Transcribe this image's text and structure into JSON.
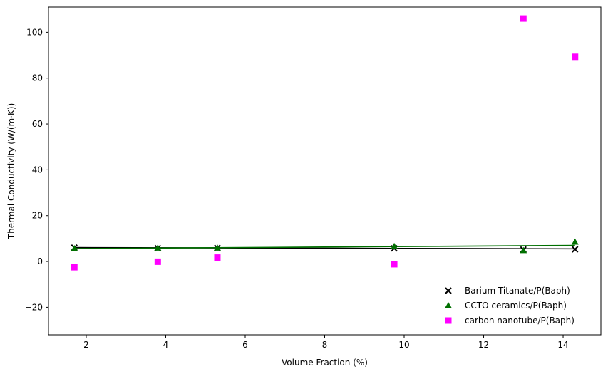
{
  "chart_data": {
    "type": "scatter",
    "title": "",
    "xlabel": "Volume Fraction (%)",
    "ylabel": "Thermal Conductivity (W/(m·K))",
    "xlim": [
      1.05,
      14.95
    ],
    "ylim": [
      -32,
      111
    ],
    "xticks": [
      2,
      4,
      6,
      8,
      10,
      12,
      14
    ],
    "yticks": [
      -20,
      0,
      20,
      40,
      60,
      80,
      100
    ],
    "grid": false,
    "legend_position": "lower-right",
    "series": [
      {
        "name": "Barium Titanate/P(Baph)",
        "marker": "x",
        "color": "#000000",
        "x": [
          1.7,
          3.8,
          5.3,
          9.75,
          13.0,
          14.3
        ],
        "y": [
          6.0,
          5.8,
          5.9,
          5.7,
          5.2,
          5.3
        ],
        "fit": {
          "x": [
            1.7,
            14.3
          ],
          "y": [
            6.05,
            5.5
          ]
        }
      },
      {
        "name": "CCTO ceramics/P(Baph)",
        "marker": "triangle",
        "color": "#007000",
        "x": [
          1.7,
          3.8,
          5.3,
          9.75,
          13.0,
          14.3
        ],
        "y": [
          5.6,
          5.9,
          5.9,
          6.6,
          4.8,
          8.5
        ],
        "fit": {
          "x": [
            1.7,
            14.3
          ],
          "y": [
            5.6,
            7.0
          ]
        }
      },
      {
        "name": "carbon nanotube/P(Baph)",
        "marker": "square",
        "color": "#ff00ff",
        "x": [
          1.7,
          3.8,
          5.3,
          9.75,
          13.0,
          14.3
        ],
        "y": [
          -2.5,
          -0.1,
          1.7,
          -1.2,
          106.0,
          89.3
        ]
      }
    ]
  }
}
